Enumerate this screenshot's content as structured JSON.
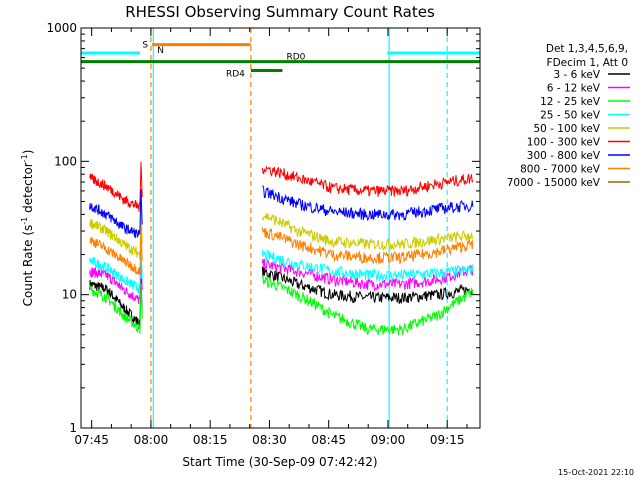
{
  "chart_data": {
    "type": "line",
    "title": "RHESSI Observing Summary Count Rates",
    "xlabel": "Start Time (30-Sep-09 07:42:42)",
    "ylabel_main": "Count Rate (s",
    "ylabel_sup1": "-1",
    "ylabel_mid": " detector",
    "ylabel_sup2": "-1",
    "ylabel_end": ")",
    "yscale": "log",
    "ylim": [
      1,
      1000
    ],
    "y_ticks": [
      {
        "value": 1,
        "label": "1"
      },
      {
        "value": 10,
        "label": "10"
      },
      {
        "value": 100,
        "label": "100"
      },
      {
        "value": 1000,
        "label": "1000"
      }
    ],
    "xlim_minutes": [
      -2.7,
      98.3
    ],
    "x_ticks": [
      {
        "value": 0,
        "label": "07:45"
      },
      {
        "value": 15,
        "label": "08:00"
      },
      {
        "value": 30,
        "label": "08:15"
      },
      {
        "value": 45,
        "label": "08:30"
      },
      {
        "value": 60,
        "label": "08:45"
      },
      {
        "value": 75,
        "label": "09:00"
      },
      {
        "value": 90,
        "label": "09:15"
      }
    ],
    "legend_header": [
      "Det 1,3,4,5,6,9,",
      "FDecim 1, Att 0"
    ],
    "series": [
      {
        "name": "3 - 6 keV",
        "color": "#000000",
        "left": [
          12,
          11,
          8,
          6
        ],
        "right": [
          15,
          12,
          10,
          9.5,
          9.5,
          10,
          11
        ]
      },
      {
        "name": "6 - 12 keV",
        "color": "#ff00ff",
        "left": [
          15,
          14,
          11,
          9
        ],
        "right": [
          17,
          15,
          13,
          12,
          12,
          13,
          15.5
        ]
      },
      {
        "name": "12 - 25 keV",
        "color": "#00ff00",
        "left": [
          11,
          9.5,
          7,
          5.5
        ],
        "right": [
          13,
          10,
          7,
          5.5,
          5.5,
          7,
          10.5
        ]
      },
      {
        "name": "25 - 50 keV",
        "color": "#00ffff",
        "left": [
          18,
          16,
          13,
          11
        ],
        "right": [
          20,
          17,
          15,
          14,
          14,
          14.5,
          15.5
        ]
      },
      {
        "name": "50 - 100 keV",
        "color": "#cccc00",
        "left": [
          35,
          30,
          24,
          20
        ],
        "right": [
          40,
          30,
          25,
          24,
          24,
          26,
          28
        ]
      },
      {
        "name": "100 - 300 keV",
        "color": "#ff0000",
        "left": [
          75,
          65,
          52,
          45
        ],
        "right": [
          90,
          75,
          63,
          60,
          60,
          68,
          75
        ]
      },
      {
        "name": "300 - 800 keV",
        "color": "#0000ff",
        "left": [
          47,
          40,
          32,
          28
        ],
        "right": [
          60,
          48,
          42,
          40,
          40,
          44,
          47
        ]
      },
      {
        "name": "800 - 7000 keV",
        "color": "#ff8000",
        "left": [
          26,
          22,
          18,
          15
        ],
        "right": [
          30,
          24,
          20,
          19,
          19,
          21,
          24
        ]
      },
      {
        "name": "7000 - 15000 keV",
        "color": "#996600",
        "left": [],
        "right": []
      }
    ],
    "state_bars": [
      {
        "label": "S",
        "color": "#ff8000",
        "start": 15.3,
        "end": 40.3,
        "value": 750
      },
      {
        "label": "N",
        "color": "#00ffff",
        "start": -2.7,
        "end": 12.2,
        "value": 650
      },
      {
        "label": "",
        "color": "#00ffff",
        "start": 74.8,
        "end": 98.3,
        "value": 650
      },
      {
        "label": "RD0",
        "color": "#008000",
        "start": -2.7,
        "end": 98.3,
        "value": 560
      },
      {
        "label": "RD4",
        "color": "#008000",
        "start": 40.3,
        "end": 48.3,
        "value": 480
      }
    ],
    "markers": [
      {
        "time": 15.0,
        "color": "#ff8000",
        "style": "dashed"
      },
      {
        "time": 15.6,
        "color": "#00ffff",
        "style": "solid"
      },
      {
        "time": 40.3,
        "color": "#ff8000",
        "style": "dashed"
      },
      {
        "time": 75.3,
        "color": "#00ffff",
        "style": "solid"
      },
      {
        "time": 90.0,
        "color": "#00ffff",
        "style": "dashed"
      }
    ],
    "timestamp": "15-Oct-2021 22:10"
  }
}
